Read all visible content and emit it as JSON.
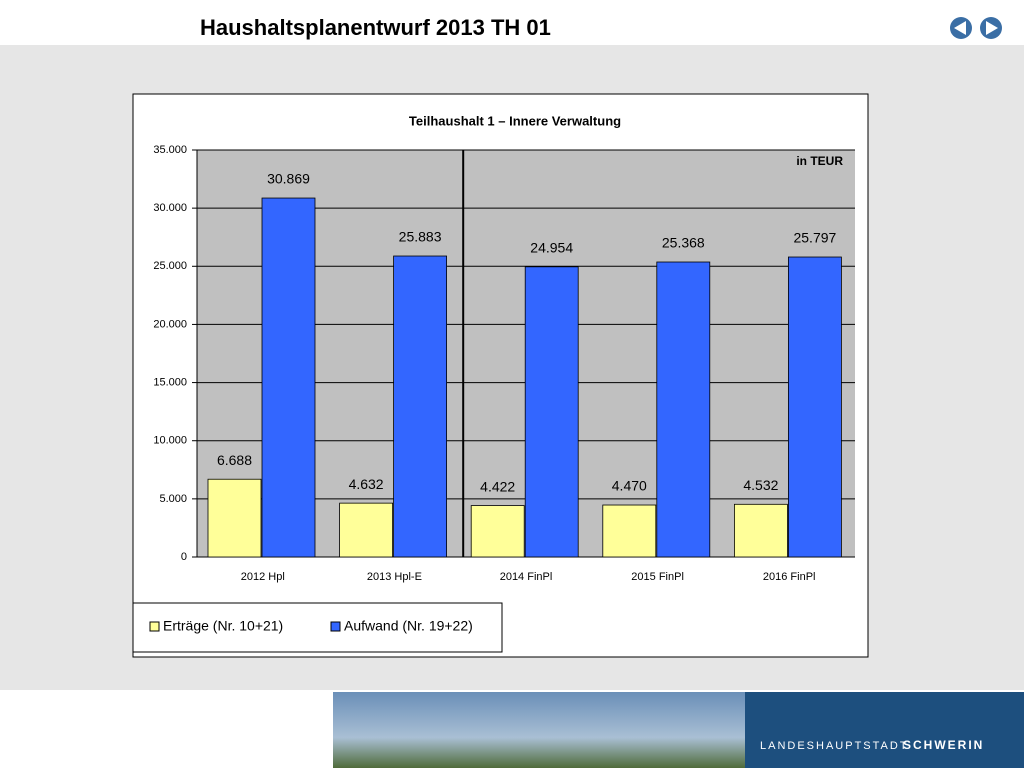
{
  "header": {
    "title": "Haushaltsplanentwurf 2013  TH 01"
  },
  "footer": {
    "prefix": "LANDESHAUPTSTADT",
    "city": "SCHWERIN"
  },
  "chart_data": {
    "type": "bar",
    "title": "Teilhaushalt 1 – Innere Verwaltung",
    "annotation": "in TEUR",
    "categories": [
      "2012 Hpl",
      "2013 Hpl-E",
      "2014 FinPl",
      "2015 FinPl",
      "2016 FinPl"
    ],
    "series": [
      {
        "name": "Erträge (Nr. 10+21)",
        "color": "#ffff99",
        "values": [
          6688,
          4632,
          4422,
          4470,
          4532
        ],
        "value_labels": [
          "6.688",
          "4.632",
          "4.422",
          "4.470",
          "4.532"
        ]
      },
      {
        "name": "Aufwand (Nr. 19+22)",
        "color": "#3366ff",
        "values": [
          30869,
          25883,
          24954,
          25368,
          25797
        ],
        "value_labels": [
          "30.869",
          "25.883",
          "24.954",
          "25.368",
          "25.797"
        ]
      }
    ],
    "ylim": [
      0,
      35000
    ],
    "yticks": [
      0,
      {
        "value": 5000,
        "label": "5.000"
      },
      {
        "value": 10000,
        "label": "10.000"
      },
      {
        "value": 15000,
        "label": "15.000"
      },
      {
        "value": 20000,
        "label": "20.000"
      },
      {
        "value": 25000,
        "label": "25.000"
      },
      {
        "value": 30000,
        "label": "30.000"
      },
      {
        "value": 35000,
        "label": "35.000"
      }
    ],
    "grid": true
  }
}
